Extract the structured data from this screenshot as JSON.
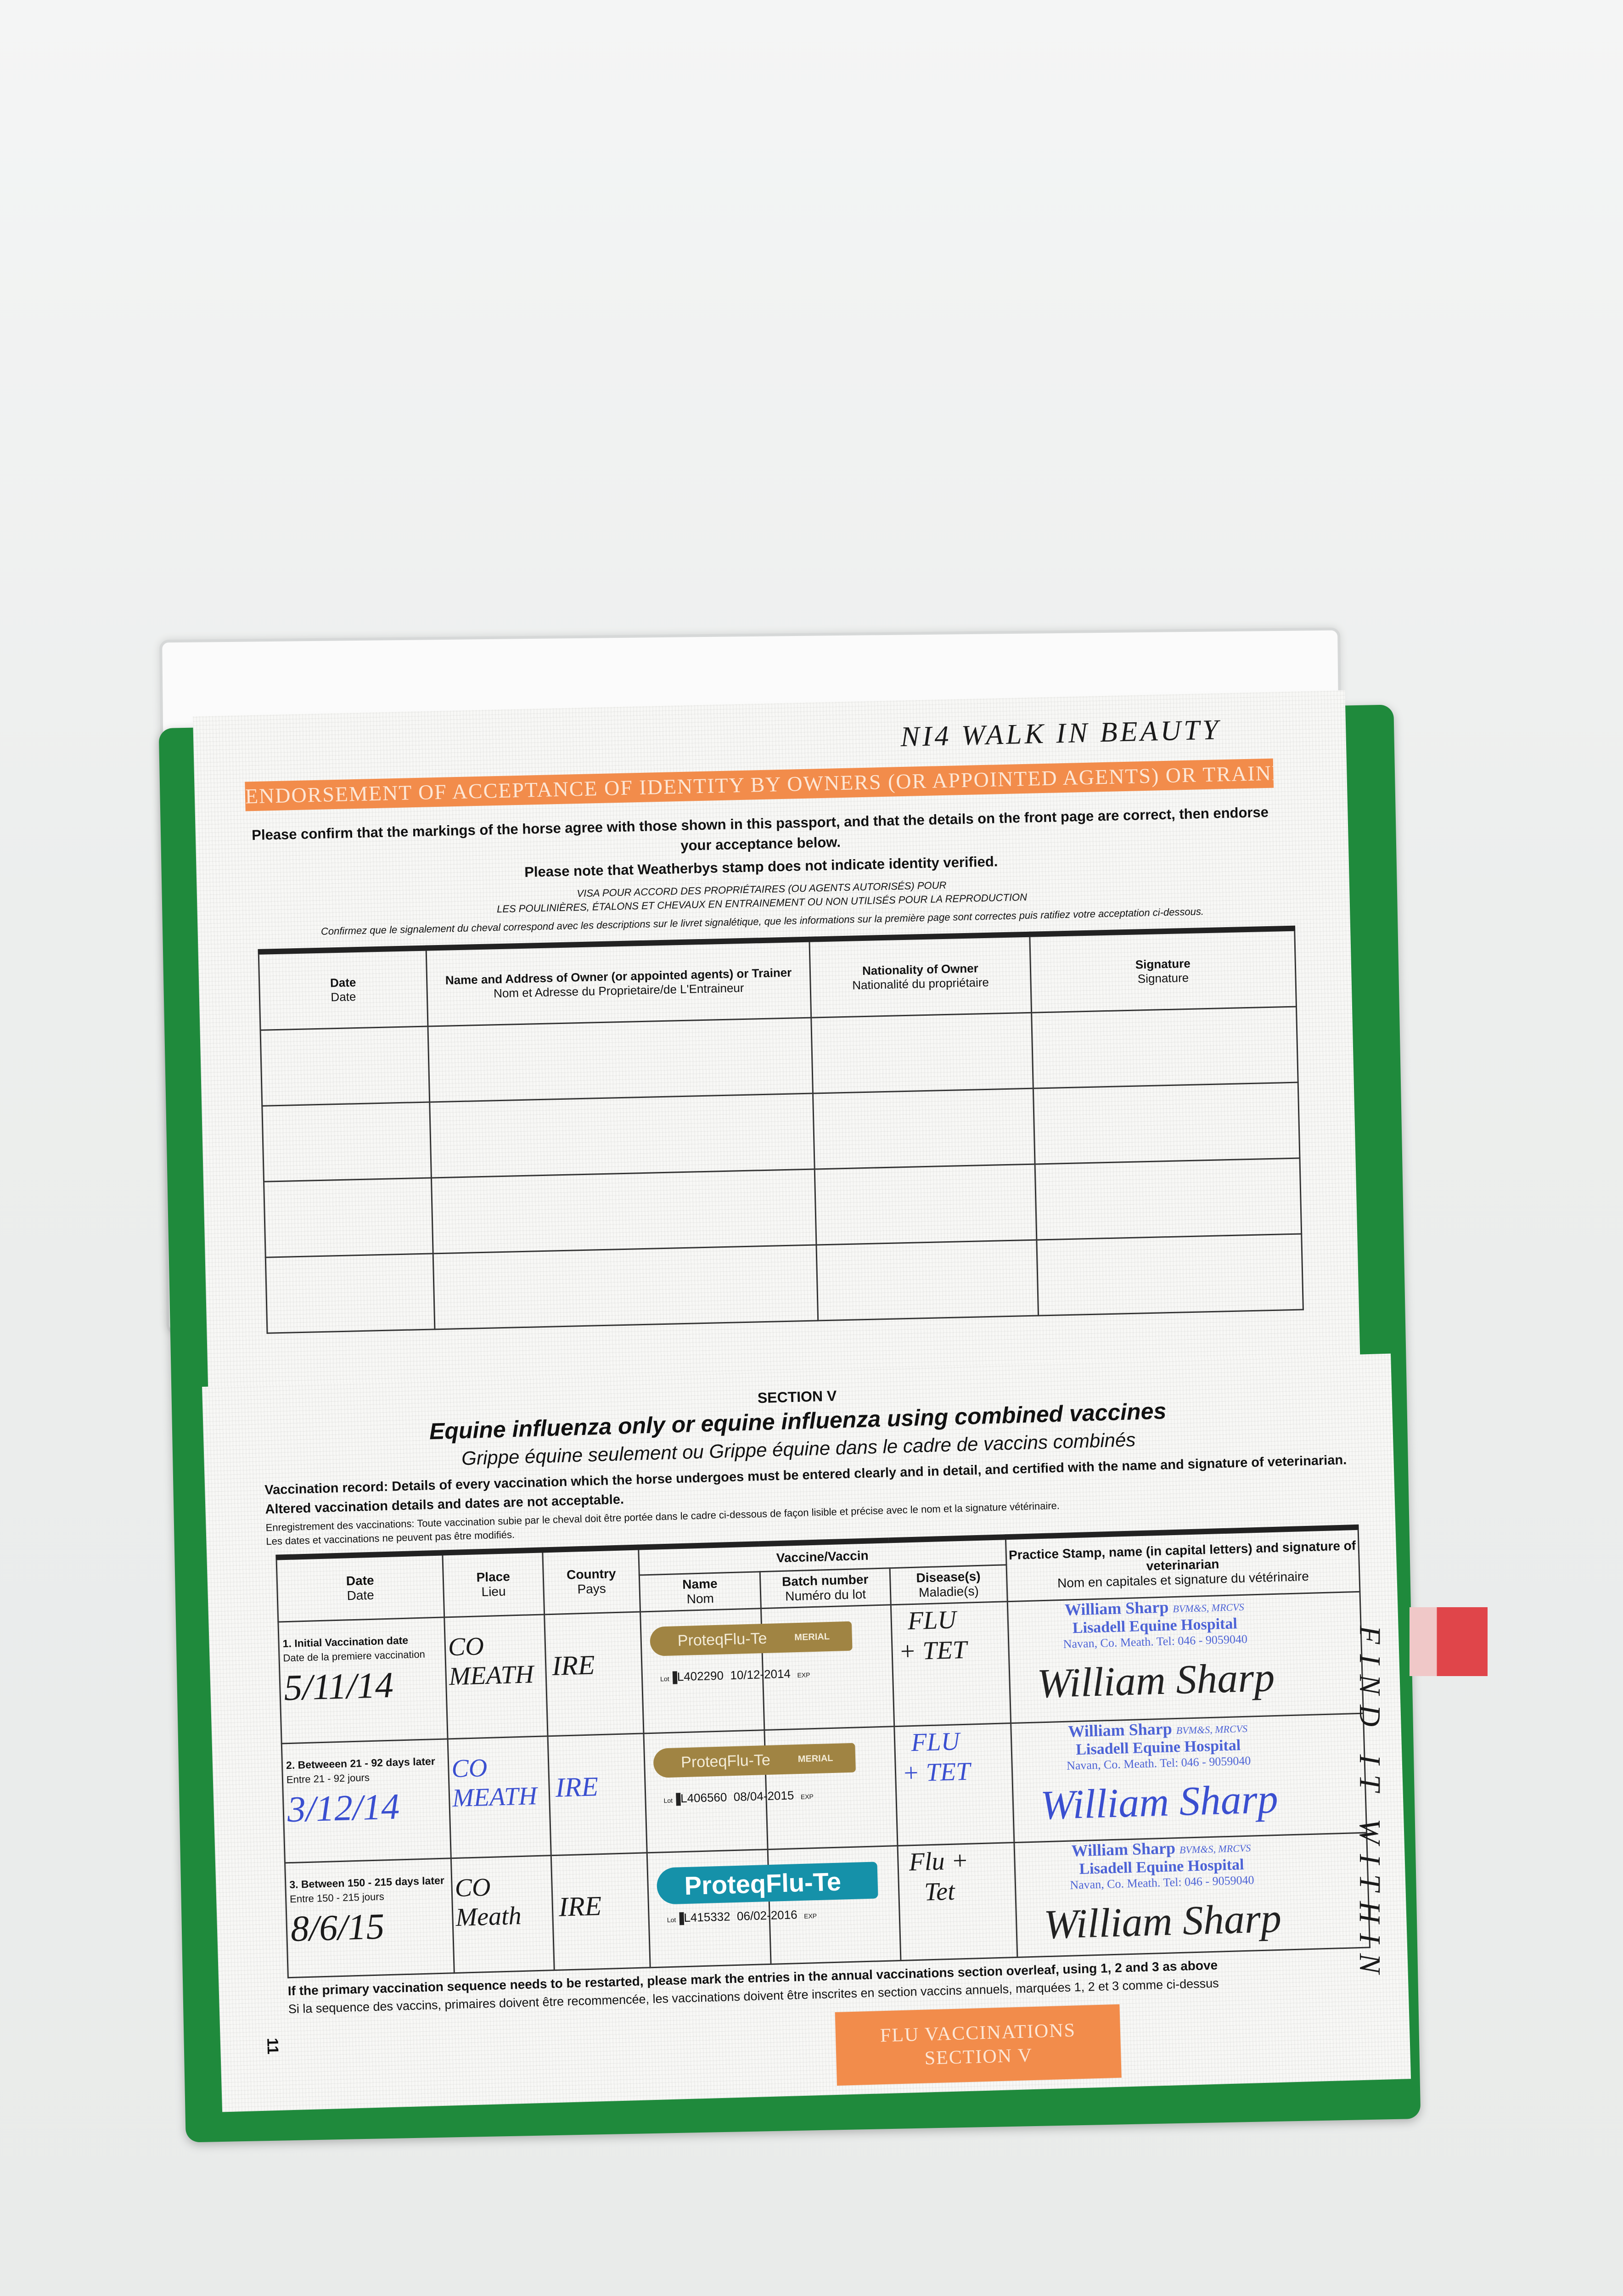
{
  "handwritten_title": "NI4 WALK IN BEAUTY",
  "endorsement": {
    "banner": "Endorsement of acceptance of identity by owners (or appointed agents) or trainers",
    "instruction_1": "Please confirm that the markings of the horse agree with those shown in this passport, and that the details on the front page are correct, then endorse your acceptance below.",
    "instruction_2": "Please note that Weatherbys stamp does not indicate identity verified.",
    "french_1": "VISA POUR ACCORD DES PROPRIÉTAIRES (OU AGENTS AUTORISÉS) POUR",
    "french_2": "LES POULINIÈRES, ÉTALONS ET CHEVAUX EN ENTRAINEMENT OU NON UTILISÉS POUR LA REPRODUCTION",
    "french_3": "Confirmez que le signalement du cheval correspond avec les descriptions sur le livret signalétique, que les informations sur la première page sont correctes puis ratifiez votre acceptation ci-dessous.",
    "columns": [
      {
        "en": "Date",
        "fr": "Date"
      },
      {
        "en": "Name and Address of Owner (or appointed agents) or Trainer",
        "fr": "Nom et Adresse du Proprietaire/de L'Entraineur"
      },
      {
        "en": "Nationality of Owner",
        "fr": "Nationalité du propriétaire"
      },
      {
        "en": "Signature",
        "fr": "Signature"
      }
    ]
  },
  "section": {
    "label": "SECTION V",
    "title": "Equine influenza only or equine influenza using combined vaccines",
    "subtitle": "Grippe équine seulement ou Grippe équine dans le cadre de vaccins combinés",
    "record_en": "Vaccination record: Details of every vaccination which the horse undergoes must be entered clearly and in detail, and certified with the name and signature of veterinarian. Altered vaccination details and dates are not acceptable.",
    "record_fr_1": "Enregistrement des vaccinations: Toute vaccination subie par le cheval doit être portée dans le cadre ci-dessous de façon lisible et précise avec le nom et la signature vétérinaire.",
    "record_fr_2": "Les dates et vaccinations ne peuvent pas être modifiés.",
    "headers": {
      "date": {
        "en": "Date",
        "fr": "Date"
      },
      "place": {
        "en": "Place",
        "fr": "Lieu"
      },
      "country": {
        "en": "Country",
        "fr": "Pays"
      },
      "vaccine": "Vaccine/Vaccin",
      "name": {
        "en": "Name",
        "fr": "Nom"
      },
      "batch": {
        "en": "Batch number",
        "fr": "Numéro du lot"
      },
      "disease": {
        "en": "Disease(s)",
        "fr": "Maladie(s)"
      },
      "stamp": {
        "en": "Practice Stamp, name (in capital letters) and signature of veterinarian",
        "fr": "Nom en capitales et signature du vétérinaire"
      }
    },
    "rows": [
      {
        "label_en": "1. Initial Vaccination date",
        "label_fr": "Date de la premiere vaccination",
        "date": "5/11/14",
        "place": "CO MEATH",
        "country": "IRE",
        "vaccine": "ProteqFlu-Te",
        "maker": "MERIAL",
        "lot_prefix": "Lot",
        "lot": "L402290",
        "exp": "10/12-2014",
        "exp_label": "EXP",
        "disease": "FLU + TET",
        "ink": "black"
      },
      {
        "label_en": "2. Betweeen 21 - 92 days later",
        "label_fr": "Entre 21 - 92 jours",
        "date": "3/12/14",
        "place": "CO MEATH",
        "country": "IRE",
        "vaccine": "ProteqFlu-Te",
        "maker": "MERIAL",
        "lot_prefix": "Lot",
        "lot": "L406560",
        "exp": "08/04-2015",
        "exp_label": "EXP",
        "disease": "FLU + TET",
        "ink": "blue"
      },
      {
        "label_en": "3. Between 150 - 215  days later",
        "label_fr": "Entre 150 - 215 jours",
        "date": "8/6/15",
        "place": "CO Meath",
        "country": "IRE",
        "vaccine": "ProteqFlu-Te",
        "maker": "",
        "lot_prefix": "Lot",
        "lot": "L415332",
        "exp": "06/02-2016",
        "exp_label": "EXP",
        "disease": "Flu + Tet",
        "ink": "black"
      }
    ],
    "stamp": {
      "name": "William Sharp",
      "quals": "BVM&S, MRCVS",
      "hospital": "Lisadell Equine Hospital",
      "address": "Navan, Co. Meath.  Tel: 046 - 9059040",
      "signature": "William Sharp"
    },
    "footer_en": "If the primary vaccination sequence needs to be restarted, please mark the entries in the annual vaccinations section overleaf, using 1, 2 and 3 as above",
    "footer_fr": "Si la sequence des vaccins, primaires doivent être recommencée, les vaccinations doivent être inscrites en section vaccins annuels, marquées 1, 2 et 3 comme ci-dessus",
    "page_number": "11",
    "tab_line1": "FLU VACCINATIONS",
    "tab_line2": "SECTION V"
  },
  "margin_note": "FIND IT WITHIN",
  "colors": {
    "orange": "#f28c4b",
    "cover_green": "#1f8a3c",
    "stamp_blue": "#4d63d6",
    "label_gold": "#a08443",
    "label_teal": "#1591a9",
    "tab_red": "#e0454a"
  }
}
